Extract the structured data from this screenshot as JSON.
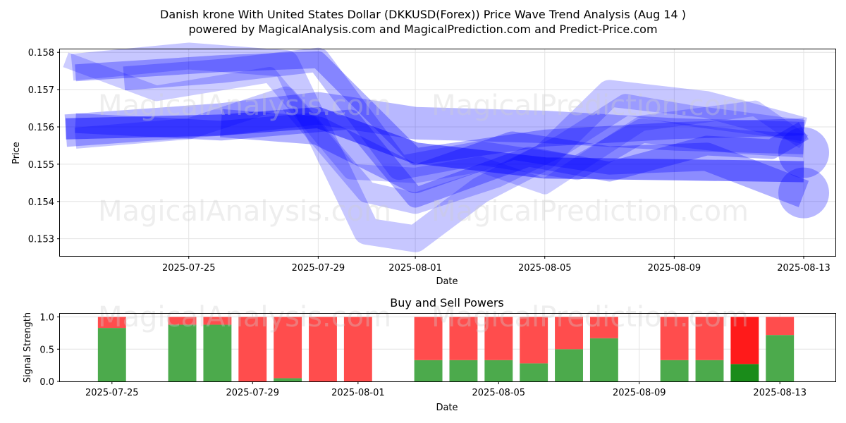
{
  "title_line1": "Danish krone With United States Dollar (DKKUSD(Forex)) Price Wave Trend Analysis (Aug 14 )",
  "title_line2": "powered by MagicalAnalysis.com and MagicalPrediction.com and Predict-Price.com",
  "watermarks": [
    "MagicalAnalysis.com",
    "MagicalPrediction.com"
  ],
  "chart_data": [
    {
      "type": "line",
      "title": "",
      "xlabel": "Date",
      "ylabel": "Price",
      "x_tick_labels": [
        "2025-07-25",
        "2025-07-29",
        "2025-08-01",
        "2025-08-05",
        "2025-08-09",
        "2025-08-13"
      ],
      "x_tick_days": [
        2,
        6,
        9,
        13,
        17,
        21
      ],
      "x_range_days": [
        -1.98,
        21.98
      ],
      "y_ticks": [
        0.153,
        0.154,
        0.155,
        0.156,
        0.157,
        0.158
      ],
      "y_tick_labels": [
        "0.153",
        "0.154",
        "0.155",
        "0.156",
        "0.157",
        "0.158"
      ],
      "ylim": [
        0.15254,
        0.15808
      ],
      "grid": true,
      "colors": {
        "wave": "#0000ff"
      },
      "series": [
        {
          "name": "wave-1",
          "x": [
            -1.8,
            3.0,
            6.0,
            9.0,
            13.0,
            17.0,
            21.0
          ],
          "y": [
            0.15595,
            0.15605,
            0.15625,
            0.1553,
            0.1549,
            0.15485,
            0.1548
          ]
        },
        {
          "name": "wave-2",
          "x": [
            -1.8,
            3.0,
            6.0,
            9.0,
            13.0,
            17.0,
            21.0
          ],
          "y": [
            0.1559,
            0.1562,
            0.1565,
            0.1561,
            0.156,
            0.1558,
            0.1557
          ]
        },
        {
          "name": "wave-3",
          "x": [
            -1.5,
            3.0,
            6.0,
            9.0,
            13.0,
            17.0,
            21.0
          ],
          "y": [
            0.15745,
            0.1577,
            0.1578,
            0.1552,
            0.1557,
            0.1559,
            0.156
          ]
        },
        {
          "name": "wave-4",
          "x": [
            -1.5,
            2.0,
            5.0,
            7.5,
            9.0,
            11.5,
            13.5,
            15.5,
            17.5,
            21.0
          ],
          "y": [
            0.1557,
            0.15595,
            0.1568,
            0.15425,
            0.15395,
            0.15465,
            0.1555,
            0.1566,
            0.1563,
            0.1559
          ]
        },
        {
          "name": "wave-5",
          "x": [
            -1.6,
            2.0,
            5.0,
            7.5,
            9.0,
            11.0,
            13.0,
            15.0,
            18.0,
            21.0
          ],
          "y": [
            0.1576,
            0.1579,
            0.1577,
            0.1532,
            0.153,
            0.1543,
            0.1552,
            0.1569,
            0.1566,
            0.1559
          ]
        },
        {
          "name": "wave-6",
          "x": [
            -1.8,
            1.0,
            4.5,
            7.0,
            9.0,
            11.0,
            13.0,
            16.0,
            19.5,
            21.0
          ],
          "y": [
            0.1578,
            0.1569,
            0.1574,
            0.1548,
            0.1547,
            0.155,
            0.1544,
            0.1561,
            0.1565,
            0.1556
          ]
        },
        {
          "name": "wave-7",
          "x": [
            -1.5,
            3.0,
            7.0,
            9.0,
            12.5,
            15.0,
            18.0,
            20.0,
            21.0
          ],
          "y": [
            0.1561,
            0.1559,
            0.1562,
            0.1541,
            0.1552,
            0.1548,
            0.1555,
            0.1554,
            0.1559
          ]
        },
        {
          "name": "wave-8",
          "x": [
            0.0,
            3.0,
            6.0,
            8.5,
            11.0,
            14.0,
            16.0,
            19.0,
            21.0
          ],
          "y": [
            0.1573,
            0.1575,
            0.1578,
            0.1549,
            0.1553,
            0.1549,
            0.1559,
            0.1556,
            0.1555
          ]
        },
        {
          "name": "wave-9",
          "x": [
            3.0,
            6.0,
            9.0,
            12.0,
            15.0,
            18.0,
            21.0
          ],
          "y": [
            0.1561,
            0.1559,
            0.1546,
            0.1555,
            0.1551,
            0.1552,
            0.1542
          ]
        }
      ]
    },
    {
      "type": "bar",
      "title": "Buy and Sell Powers",
      "xlabel": "Date",
      "ylabel": "Signal Strength",
      "x_tick_labels": [
        "2025-07-25",
        "2025-07-29",
        "2025-08-01",
        "2025-08-05",
        "2025-08-09",
        "2025-08-13"
      ],
      "x_tick_days": [
        0,
        4,
        7,
        11,
        15,
        19
      ],
      "x_range_days": [
        -1.48,
        20.58
      ],
      "y_ticks": [
        0.0,
        0.5,
        1.0
      ],
      "y_tick_labels": [
        "0.0",
        "0.5",
        "1.0"
      ],
      "ylim": [
        0.0,
        1.05
      ],
      "grid": true,
      "colors": {
        "buy": "#4caa4c",
        "sell": "#ff4d4d",
        "buy_strong": "#1a8c1a",
        "sell_strong": "#ff1a1a"
      },
      "categories": [
        "2025-07-25",
        "2025-07-27",
        "2025-07-28",
        "2025-07-29",
        "2025-07-30",
        "2025-07-31",
        "2025-08-01",
        "2025-08-03",
        "2025-08-04",
        "2025-08-05",
        "2025-08-06",
        "2025-08-07",
        "2025-08-08",
        "2025-08-10",
        "2025-08-11",
        "2025-08-12",
        "2025-08-13"
      ],
      "bar_days": [
        0,
        2,
        3,
        4,
        5,
        6,
        7,
        9,
        10,
        11,
        12,
        13,
        14,
        16,
        17,
        18,
        19
      ],
      "series": [
        {
          "name": "Buy",
          "values": [
            0.83,
            0.88,
            0.88,
            0.0,
            0.05,
            0.0,
            0.0,
            0.33,
            0.33,
            0.33,
            0.28,
            0.5,
            0.67,
            0.33,
            0.33,
            0.27,
            0.72
          ]
        },
        {
          "name": "Sell",
          "values": [
            0.17,
            0.12,
            0.12,
            1.0,
            0.95,
            1.0,
            1.0,
            0.67,
            0.67,
            0.67,
            0.72,
            0.5,
            0.33,
            0.67,
            0.67,
            0.73,
            0.28
          ]
        }
      ],
      "strong_index": 15
    }
  ]
}
